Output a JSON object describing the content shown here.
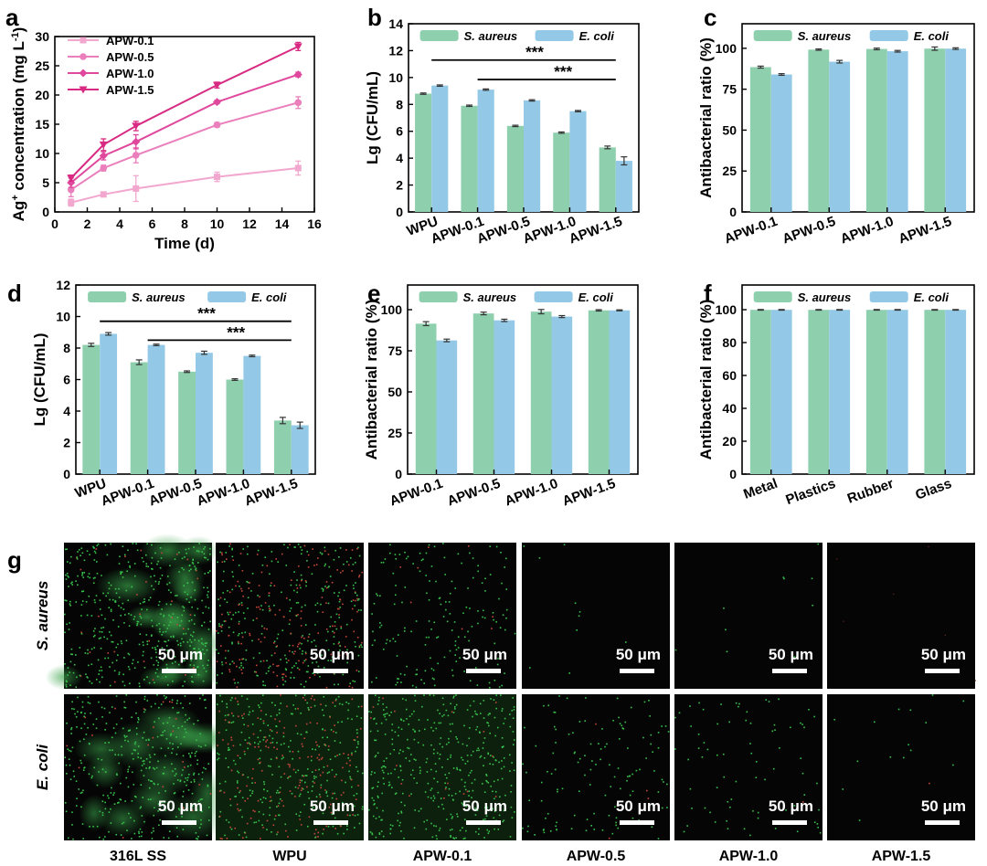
{
  "colors": {
    "s_aureus": "#8ecfae",
    "e_coli": "#93c9e6",
    "line_0_1": "#f2a7cf",
    "line_0_5": "#ea7fbc",
    "line_1_0": "#e0489d",
    "line_1_5": "#d82a82"
  },
  "chart_data": [
    {
      "id": "a",
      "panel_label": "a",
      "type": "line",
      "xlabel": "Time (d)",
      "ylabel_main": "Ag",
      "ylabel_sup": "+",
      "ylabel_rest": " concentration (mg L",
      "ylabel_sup2": "-1",
      "ylabel_end": ")",
      "xlim": [
        0,
        16
      ],
      "ylim": [
        0,
        30
      ],
      "xticks": [
        0,
        2,
        4,
        6,
        8,
        10,
        12,
        14,
        16
      ],
      "yticks": [
        0,
        5,
        10,
        15,
        20,
        25,
        30
      ],
      "legend_position": "top-left",
      "series": [
        {
          "name": "APW-0.1",
          "color": "#f2a7cf",
          "marker": "square",
          "x": [
            1,
            3,
            5,
            10,
            15
          ],
          "y": [
            1.6,
            3.0,
            4.0,
            6.0,
            7.5
          ],
          "err": [
            0.6,
            0.3,
            2.2,
            0.8,
            1.2
          ]
        },
        {
          "name": "APW-0.5",
          "color": "#ea7fbc",
          "marker": "circle",
          "x": [
            1,
            3,
            5,
            10,
            15
          ],
          "y": [
            3.8,
            7.5,
            9.7,
            14.9,
            18.7
          ],
          "err": [
            1.2,
            0.5,
            1.3,
            0.4,
            1.0
          ]
        },
        {
          "name": "APW-1.0",
          "color": "#e0489d",
          "marker": "diamond",
          "x": [
            1,
            3,
            5,
            10,
            15
          ],
          "y": [
            5.0,
            9.6,
            12.0,
            18.8,
            23.5
          ],
          "err": [
            0.8,
            0.7,
            1.2,
            0.3,
            0.4
          ]
        },
        {
          "name": "APW-1.5",
          "color": "#d82a82",
          "marker": "triangle-down",
          "x": [
            1,
            3,
            5,
            10,
            15
          ],
          "y": [
            5.8,
            11.5,
            14.7,
            21.7,
            28.3
          ],
          "err": [
            0.5,
            1.0,
            0.8,
            0.5,
            0.7
          ]
        }
      ]
    },
    {
      "id": "b",
      "panel_label": "b",
      "type": "bar",
      "ylabel": "Lg (CFU/mL)",
      "ylim": [
        0,
        14
      ],
      "yticks": [
        0,
        2,
        4,
        6,
        8,
        10,
        12,
        14
      ],
      "categories": [
        "WPU",
        "APW-0.1",
        "APW-0.5",
        "APW-1.0",
        "APW-1.5"
      ],
      "legend_position": "top",
      "series": [
        {
          "name": "S. aureus",
          "values": [
            8.8,
            7.9,
            6.4,
            5.9,
            4.8
          ],
          "err": [
            0.05,
            0.05,
            0.05,
            0.05,
            0.1
          ]
        },
        {
          "name": "E. coli",
          "values": [
            9.4,
            9.1,
            8.3,
            7.5,
            3.8
          ],
          "err": [
            0.05,
            0.05,
            0.05,
            0.05,
            0.3
          ]
        }
      ],
      "significance": [
        {
          "label": "***",
          "y": 11.3,
          "from": 0,
          "to": 4
        },
        {
          "label": "***",
          "y": 9.85,
          "from": 1,
          "to": 4
        }
      ]
    },
    {
      "id": "c",
      "panel_label": "c",
      "type": "bar",
      "ylabel": "Antibacterial ratio (%)",
      "ylim": [
        0,
        115
      ],
      "yticks": [
        0,
        25,
        50,
        75,
        100
      ],
      "categories": [
        "APW-0.1",
        "APW-0.5",
        "APW-1.0",
        "APW-1.5"
      ],
      "legend_position": "top",
      "series": [
        {
          "name": "S. aureus",
          "values": [
            88.5,
            99.2,
            99.6,
            99.8
          ],
          "err": [
            0.6,
            0.4,
            0.5,
            1.0
          ]
        },
        {
          "name": "E. coli",
          "values": [
            84.0,
            91.8,
            98.2,
            99.8
          ],
          "err": [
            0.5,
            0.8,
            0.5,
            0.5
          ]
        }
      ]
    },
    {
      "id": "d",
      "panel_label": "d",
      "type": "bar",
      "ylabel": "Lg (CFU/mL)",
      "ylim": [
        0,
        12
      ],
      "yticks": [
        0,
        2,
        4,
        6,
        8,
        10,
        12
      ],
      "categories": [
        "WPU",
        "APW-0.1",
        "APW-0.5",
        "APW-1.0",
        "APW-1.5"
      ],
      "legend_position": "top",
      "series": [
        {
          "name": "S. aureus",
          "values": [
            8.2,
            7.1,
            6.5,
            6.0,
            3.4
          ],
          "err": [
            0.1,
            0.15,
            0.05,
            0.05,
            0.2
          ]
        },
        {
          "name": "E. coli",
          "values": [
            8.9,
            8.2,
            7.7,
            7.5,
            3.1
          ],
          "err": [
            0.08,
            0.05,
            0.1,
            0.05,
            0.2
          ]
        }
      ],
      "significance": [
        {
          "label": "***",
          "y": 9.7,
          "from": 0,
          "to": 4
        },
        {
          "label": "***",
          "y": 8.5,
          "from": 1,
          "to": 4
        }
      ]
    },
    {
      "id": "e",
      "panel_label": "e",
      "type": "bar",
      "ylabel": "Antibacterial ratio (%)",
      "ylim": [
        0,
        115
      ],
      "yticks": [
        0,
        25,
        50,
        75,
        100
      ],
      "categories": [
        "APW-0.1",
        "APW-0.5",
        "APW-1.0",
        "APW-1.5"
      ],
      "legend_position": "top",
      "series": [
        {
          "name": "S. aureus",
          "values": [
            91.5,
            97.7,
            98.8,
            99.6
          ],
          "err": [
            1.2,
            0.8,
            1.3,
            0.4
          ]
        },
        {
          "name": "E. coli",
          "values": [
            81.3,
            93.5,
            95.8,
            99.6
          ],
          "err": [
            0.8,
            0.7,
            0.6,
            0.3
          ]
        }
      ]
    },
    {
      "id": "f",
      "panel_label": "f",
      "type": "bar",
      "ylabel": "Antibacterial ratio (%)",
      "ylim": [
        0,
        115
      ],
      "yticks": [
        0,
        20,
        40,
        60,
        80,
        100
      ],
      "categories": [
        "Metal",
        "Plastics",
        "Rubber",
        "Glass"
      ],
      "legend_position": "top",
      "series": [
        {
          "name": "S. aureus",
          "values": [
            99.9,
            99.9,
            99.9,
            99.9
          ],
          "err": [
            0.2,
            0.2,
            0.2,
            0.2
          ]
        },
        {
          "name": "E. coli",
          "values": [
            99.9,
            99.9,
            99.9,
            99.9
          ],
          "err": [
            0.2,
            0.2,
            0.2,
            0.2
          ]
        }
      ]
    }
  ],
  "micrographs": {
    "panel_label": "g",
    "rows": [
      "S. aureus",
      "E. coli"
    ],
    "columns": [
      "316L SS",
      "WPU",
      "APW-0.1",
      "APW-0.5",
      "APW-1.0",
      "APW-1.5"
    ],
    "scale_bar": "50 μm",
    "density": [
      [
        1.0,
        0.9,
        0.35,
        0.02,
        0.02,
        0.0
      ],
      [
        0.8,
        0.95,
        0.85,
        0.25,
        0.15,
        0.03
      ]
    ]
  }
}
